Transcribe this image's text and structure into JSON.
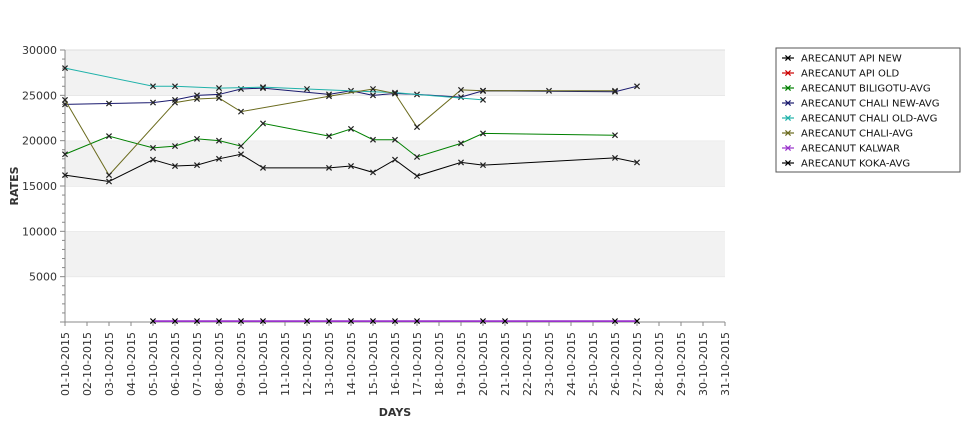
{
  "chart_data": {
    "type": "line",
    "title": "",
    "xlabel": "DAYS",
    "ylabel": "RATES",
    "ylim": [
      0,
      30000
    ],
    "yticks": [
      5000,
      10000,
      15000,
      20000,
      25000,
      30000
    ],
    "grid": "alternating horizontal bands",
    "legend_position": "right",
    "categories": [
      "01-10-2015",
      "02-10-2015",
      "03-10-2015",
      "04-10-2015",
      "05-10-2015",
      "06-10-2015",
      "07-10-2015",
      "08-10-2015",
      "09-10-2015",
      "10-10-2015",
      "11-10-2015",
      "12-10-2015",
      "13-10-2015",
      "14-10-2015",
      "15-10-2015",
      "16-10-2015",
      "17-10-2015",
      "18-10-2015",
      "19-10-2015",
      "20-10-2015",
      "21-10-2015",
      "22-10-2015",
      "23-10-2015",
      "24-10-2015",
      "25-10-2015",
      "26-10-2015",
      "27-10-2015",
      "28-10-2015",
      "29-10-2015",
      "30-10-2015",
      "31-10-2015"
    ],
    "series": [
      {
        "name": "ARECANUT API NEW",
        "color": "#000000",
        "points": [
          [
            "20-10-2015",
            25500
          ],
          [
            "23-10-2015",
            25500
          ]
        ]
      },
      {
        "name": "ARECANUT API OLD",
        "color": "#cc0000",
        "points": []
      },
      {
        "name": "ARECANUT BILIGOTU-AVG",
        "color": "#008000",
        "points": [
          [
            "01-10-2015",
            18500
          ],
          [
            "03-10-2015",
            20500
          ],
          [
            "05-10-2015",
            19200
          ],
          [
            "06-10-2015",
            19400
          ],
          [
            "07-10-2015",
            20200
          ],
          [
            "08-10-2015",
            20000
          ],
          [
            "09-10-2015",
            19400
          ],
          [
            "10-10-2015",
            21900
          ],
          [
            "13-10-2015",
            20500
          ],
          [
            "14-10-2015",
            21300
          ],
          [
            "15-10-2015",
            20100
          ],
          [
            "16-10-2015",
            20100
          ],
          [
            "17-10-2015",
            18200
          ],
          [
            "19-10-2015",
            19700
          ],
          [
            "20-10-2015",
            20800
          ],
          [
            "26-10-2015",
            20600
          ]
        ]
      },
      {
        "name": "ARECANUT CHALI NEW-AVG",
        "color": "#1a1a6e",
        "points": [
          [
            "01-10-2015",
            24000
          ],
          [
            "03-10-2015",
            24100
          ],
          [
            "05-10-2015",
            24200
          ],
          [
            "06-10-2015",
            24500
          ],
          [
            "07-10-2015",
            25000
          ],
          [
            "08-10-2015",
            25100
          ],
          [
            "09-10-2015",
            25700
          ],
          [
            "10-10-2015",
            25800
          ],
          [
            "13-10-2015",
            25100
          ],
          [
            "14-10-2015",
            25500
          ],
          [
            "15-10-2015",
            25000
          ],
          [
            "16-10-2015",
            25200
          ],
          [
            "17-10-2015",
            25100
          ],
          [
            "19-10-2015",
            24800
          ],
          [
            "20-10-2015",
            25500
          ],
          [
            "26-10-2015",
            25400
          ],
          [
            "27-10-2015",
            26000
          ]
        ]
      },
      {
        "name": "ARECANUT CHALI OLD-AVG",
        "color": "#20b2aa",
        "points": [
          [
            "01-10-2015",
            28000
          ],
          [
            "05-10-2015",
            26000
          ],
          [
            "06-10-2015",
            26000
          ],
          [
            "08-10-2015",
            25800
          ],
          [
            "10-10-2015",
            25900
          ],
          [
            "12-10-2015",
            25700
          ],
          [
            "16-10-2015",
            25300
          ],
          [
            "20-10-2015",
            24500
          ]
        ]
      },
      {
        "name": "ARECANUT CHALI-AVG",
        "color": "#6b6b1e",
        "points": [
          [
            "01-10-2015",
            24500
          ],
          [
            "03-10-2015",
            16200
          ],
          [
            "06-10-2015",
            24200
          ],
          [
            "07-10-2015",
            24600
          ],
          [
            "08-10-2015",
            24700
          ],
          [
            "09-10-2015",
            23200
          ],
          [
            "13-10-2015",
            24900
          ],
          [
            "15-10-2015",
            25700
          ],
          [
            "16-10-2015",
            25200
          ],
          [
            "17-10-2015",
            21500
          ],
          [
            "19-10-2015",
            25600
          ],
          [
            "20-10-2015",
            25500
          ],
          [
            "26-10-2015",
            25500
          ]
        ]
      },
      {
        "name": "ARECANUT KALWAR",
        "color": "#9932cc",
        "points": [
          [
            "05-10-2015",
            100
          ],
          [
            "06-10-2015",
            100
          ],
          [
            "07-10-2015",
            100
          ],
          [
            "08-10-2015",
            100
          ],
          [
            "09-10-2015",
            100
          ],
          [
            "10-10-2015",
            100
          ],
          [
            "12-10-2015",
            100
          ],
          [
            "13-10-2015",
            100
          ],
          [
            "14-10-2015",
            100
          ],
          [
            "15-10-2015",
            100
          ],
          [
            "16-10-2015",
            100
          ],
          [
            "17-10-2015",
            100
          ],
          [
            "20-10-2015",
            100
          ],
          [
            "21-10-2015",
            100
          ],
          [
            "26-10-2015",
            100
          ],
          [
            "27-10-2015",
            100
          ]
        ]
      },
      {
        "name": "ARECANUT KOKA-AVG",
        "color": "#000000",
        "points": [
          [
            "01-10-2015",
            16200
          ],
          [
            "03-10-2015",
            15500
          ],
          [
            "05-10-2015",
            17900
          ],
          [
            "06-10-2015",
            17200
          ],
          [
            "07-10-2015",
            17300
          ],
          [
            "08-10-2015",
            18000
          ],
          [
            "09-10-2015",
            18500
          ],
          [
            "10-10-2015",
            17000
          ],
          [
            "13-10-2015",
            17000
          ],
          [
            "14-10-2015",
            17200
          ],
          [
            "15-10-2015",
            16500
          ],
          [
            "16-10-2015",
            17900
          ],
          [
            "17-10-2015",
            16100
          ],
          [
            "19-10-2015",
            17600
          ],
          [
            "20-10-2015",
            17300
          ],
          [
            "26-10-2015",
            18100
          ],
          [
            "27-10-2015",
            17600
          ]
        ]
      }
    ]
  }
}
